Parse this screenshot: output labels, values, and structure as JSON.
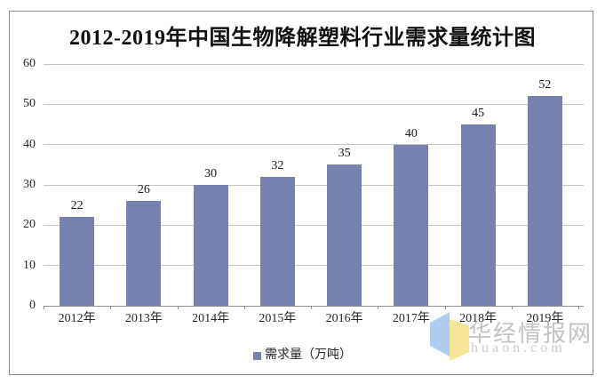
{
  "chart_data": {
    "type": "bar",
    "title": "2012-2019年中国生物降解塑料行业需求量统计图",
    "categories": [
      "2012年",
      "2013年",
      "2014年",
      "2015年",
      "2016年",
      "2017年",
      "2018年",
      "2019年"
    ],
    "values": [
      22,
      26,
      30,
      32,
      35,
      40,
      45,
      52
    ],
    "series_name": "需求量（万吨）",
    "xlabel": "",
    "ylabel": "",
    "ylim": [
      0,
      60
    ],
    "yticks": [
      0,
      10,
      20,
      30,
      40,
      50,
      60
    ],
    "grid": true,
    "legend_position": "bottom",
    "bar_color": "#7681ad"
  },
  "legend": {
    "label": "需求量（万吨）"
  },
  "watermark": {
    "name": "华经情报网",
    "domain": "huaon.com",
    "logo_blue": "#a9c6ef",
    "logo_yellow": "#f5e18c"
  }
}
